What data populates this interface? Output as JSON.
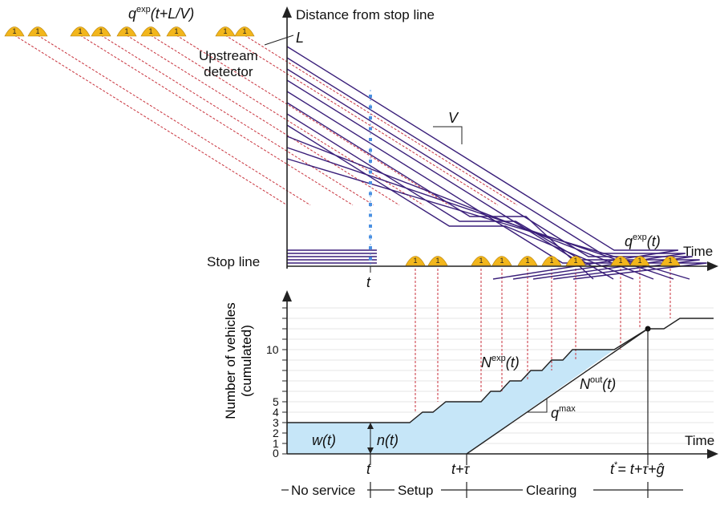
{
  "top_panel": {
    "y_axis_label": "Distance from stop line",
    "x_axis_label": "Time",
    "stop_line_label": "Stop line",
    "upstream_detector_line1": "Upstream",
    "upstream_detector_line2": "detector",
    "distance_label": "L",
    "speed_label": "V",
    "arrivals_upstream_base": "q",
    "arrivals_upstream_sup": "exp",
    "arrivals_upstream_arg": "(t+L/V)",
    "arrivals_stopline_base": "q",
    "arrivals_stopline_sup": "exp",
    "arrivals_stopline_arg": "(t)",
    "time_marker": "t",
    "vehicle_icon_label": "1"
  },
  "bottom_panel": {
    "y_axis_label_line1": "Number of vehicles",
    "y_axis_label_line2": "(cumulated)",
    "x_axis_label": "Time",
    "y_ticks": [
      "0",
      "1",
      "2",
      "3",
      "4",
      "5",
      "10"
    ],
    "expected_curve_base": "N",
    "expected_curve_sup": "exp",
    "expected_curve_arg": "(t)",
    "output_curve_base": "N",
    "output_curve_sup": "out",
    "output_curve_arg": "(t)",
    "max_flow_base": "q",
    "max_flow_sup": "max",
    "waiting_label": "w(t)",
    "queue_label": "n(t)",
    "tick_t": "t",
    "tick_t_tau": "t+τ",
    "tick_t_star_base": "t",
    "tick_t_star_sup": "*",
    "tick_t_star_rest": "= t+τ+ĝ"
  },
  "phases": {
    "no_service": "No service",
    "setup": "Setup",
    "clearing": "Clearing"
  },
  "colors": {
    "trajectory": "#3a1f7a",
    "dashed": "#c8323c",
    "fill": "#c6e6f8",
    "vehicle": "#f2b61c",
    "detector": "#4a90e2"
  }
}
